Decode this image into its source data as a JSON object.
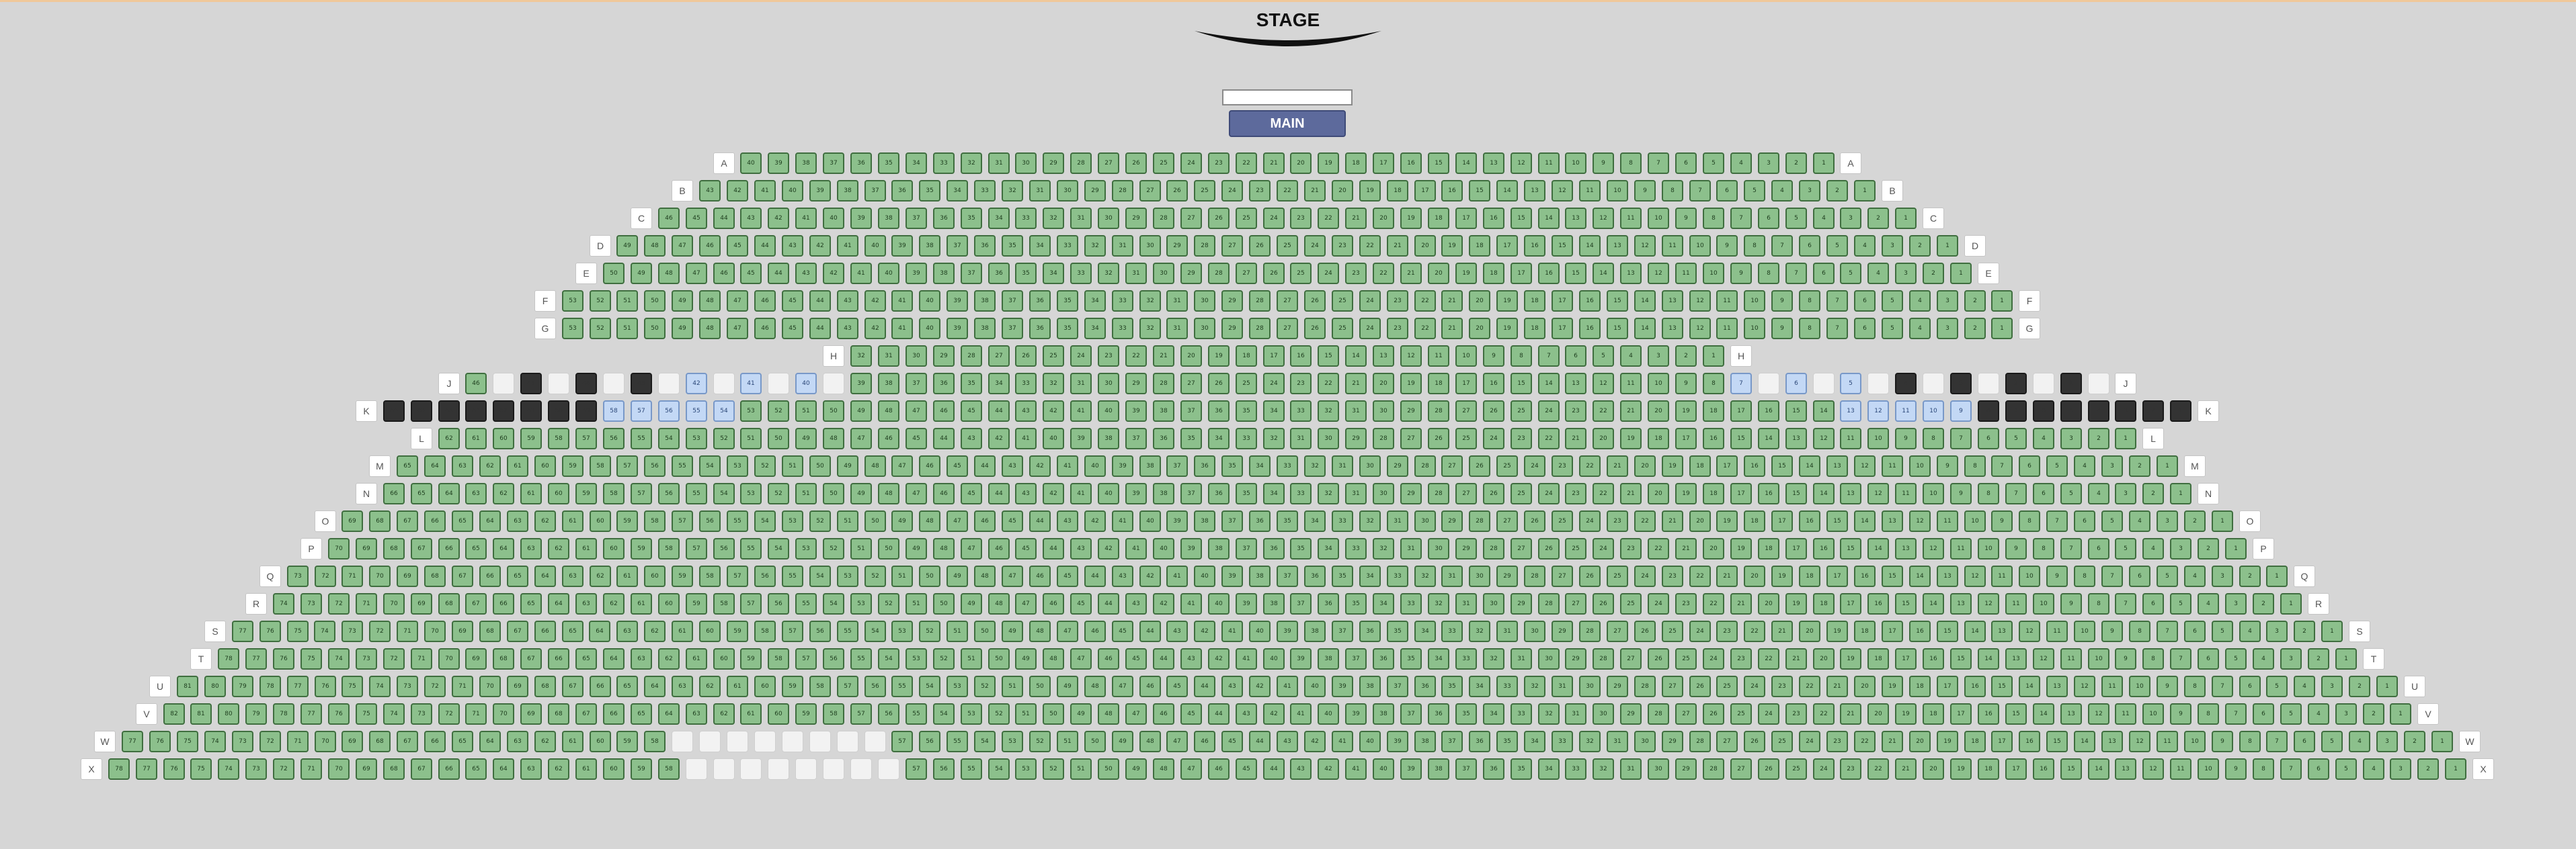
{
  "stage": {
    "label": "STAGE"
  },
  "search": {
    "value": "",
    "placeholder": ""
  },
  "section": {
    "label": "MAIN"
  },
  "colors": {
    "available": "#8cc08c",
    "selected": "#c3d8f5",
    "occupied": "#333333",
    "section_button": "#5d6a9c",
    "background": "#d6d6d6"
  },
  "rows": [
    {
      "label": "A",
      "status": "40*A"
    },
    {
      "label": "B",
      "status": "43*A"
    },
    {
      "label": "C",
      "status": "46*A"
    },
    {
      "label": "D",
      "status": "49*A"
    },
    {
      "label": "E",
      "status": "50*A"
    },
    {
      "label": "F",
      "status": "53*A"
    },
    {
      "label": "G",
      "status": "53*A"
    },
    {
      "label": "H",
      "status": "32*A"
    },
    {
      "label": "J",
      "status": "1*A,1*E,1*O,1*E,1*O,1*E,1*O,1*E,1*S,1*E,1*S,1*E,1*S,1*E,32*A,1*S,1*E,1*S,1*E,1*S,1*E,1*O,1*E,1*O,1*E,1*O,1*E,1*O,1*E"
    },
    {
      "label": "K",
      "status": "8*O,5*S,40*A,5*S,8*O"
    },
    {
      "label": "L",
      "status": "62*A"
    },
    {
      "label": "M",
      "status": "65*A"
    },
    {
      "label": "N",
      "status": "66*A"
    },
    {
      "label": "O",
      "status": "69*A"
    },
    {
      "label": "P",
      "status": "70*A"
    },
    {
      "label": "Q",
      "status": "73*A"
    },
    {
      "label": "R",
      "status": "74*A"
    },
    {
      "label": "S",
      "status": "77*A"
    },
    {
      "label": "T",
      "status": "78*A"
    },
    {
      "label": "U",
      "status": "81*A"
    },
    {
      "label": "V",
      "status": "82*A"
    },
    {
      "label": "W",
      "status": "20*A,8*E,57*A"
    },
    {
      "label": "X",
      "status": "21*A,8*E,57*A"
    }
  ]
}
